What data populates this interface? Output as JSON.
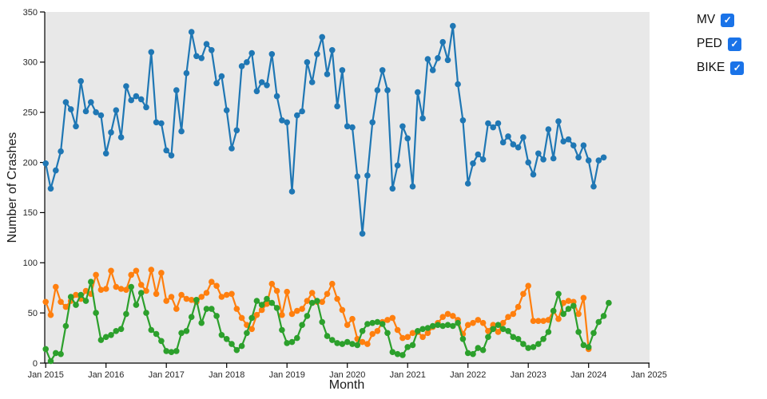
{
  "chart_data": {
    "type": "line",
    "title": "",
    "xlabel": "Month",
    "ylabel": "Number of Crashes",
    "x_start_month": "Jan 2015",
    "x_months_total": 120,
    "x_tick_labels": [
      "Jan 2015",
      "Jan 2016",
      "Jan 2017",
      "Jan 2018",
      "Jan 2019",
      "Jan 2020",
      "Jan 2021",
      "Jan 2022",
      "Jan 2023",
      "Jan 2024",
      "Jan 2025"
    ],
    "x_tick_month_index": [
      0,
      12,
      24,
      36,
      48,
      60,
      72,
      84,
      96,
      108,
      120
    ],
    "y_ticks": [
      0,
      50,
      100,
      150,
      200,
      250,
      300,
      350
    ],
    "ylim": [
      0,
      350
    ],
    "grid": false,
    "plot_background": "#e8e8e8",
    "axis_color": "#000000",
    "tick_label_color": "#262626",
    "legend_position": "outside-top-right",
    "legend_checkbox_color": "#1a73e8",
    "legend_check_glyph": "✓",
    "series": [
      {
        "name": "MV",
        "color": "#1f77b4",
        "checked": true,
        "start_month": "Jan 2015",
        "values": [
          199,
          174,
          192,
          211,
          260,
          253,
          236,
          281,
          251,
          260,
          250,
          247,
          209,
          230,
          252,
          225,
          276,
          262,
          266,
          263,
          255,
          310,
          240,
          239,
          212,
          207,
          272,
          231,
          289,
          330,
          306,
          304,
          318,
          312,
          279,
          286,
          252,
          214,
          232,
          296,
          300,
          309,
          271,
          280,
          277,
          308,
          266,
          242,
          240,
          171,
          247,
          251,
          300,
          280,
          308,
          325,
          288,
          312,
          256,
          292,
          236,
          235,
          186,
          129,
          187,
          240,
          272,
          292,
          272,
          174,
          197,
          236,
          224,
          176,
          270,
          244,
          303,
          292,
          304,
          320,
          302,
          336,
          278,
          242,
          179,
          199,
          208,
          203,
          239,
          235,
          239,
          220,
          226,
          218,
          215,
          225,
          200,
          188,
          209,
          203,
          233,
          204,
          241,
          221,
          223,
          217,
          205,
          217,
          202,
          176,
          202,
          205
        ]
      },
      {
        "name": "PED",
        "color": "#ff7f0e",
        "checked": true,
        "start_month": "Jan 2015",
        "values": [
          61,
          48,
          76,
          61,
          56,
          62,
          68,
          64,
          72,
          69,
          88,
          73,
          74,
          92,
          76,
          74,
          73,
          88,
          92,
          78,
          72,
          93,
          69,
          90,
          62,
          66,
          54,
          68,
          64,
          63,
          61,
          66,
          70,
          81,
          77,
          66,
          68,
          69,
          54,
          45,
          38,
          34,
          48,
          53,
          59,
          79,
          72,
          48,
          71,
          49,
          52,
          54,
          62,
          70,
          61,
          61,
          69,
          79,
          64,
          53,
          38,
          44,
          24,
          21,
          19,
          29,
          32,
          41,
          43,
          45,
          33,
          25,
          26,
          30,
          31,
          26,
          30,
          36,
          40,
          46,
          49,
          47,
          43,
          29,
          38,
          40,
          43,
          40,
          32,
          38,
          31,
          40,
          46,
          49,
          56,
          69,
          77,
          42,
          42,
          42,
          43,
          52,
          44,
          60,
          62,
          61,
          49,
          65,
          14
        ]
      },
      {
        "name": "BIKE",
        "color": "#2ca02c",
        "checked": true,
        "start_month": "Jan 2015",
        "values": [
          14,
          2,
          10,
          9,
          37,
          66,
          58,
          68,
          62,
          81,
          50,
          23,
          26,
          28,
          32,
          34,
          49,
          76,
          58,
          70,
          50,
          33,
          29,
          22,
          12,
          11,
          12,
          30,
          32,
          46,
          63,
          40,
          54,
          54,
          47,
          28,
          24,
          19,
          13,
          17,
          30,
          45,
          62,
          58,
          64,
          60,
          55,
          33,
          20,
          21,
          25,
          38,
          47,
          60,
          62,
          41,
          27,
          23,
          20,
          19,
          21,
          19,
          18,
          32,
          39,
          40,
          41,
          39,
          30,
          11,
          9,
          8,
          16,
          18,
          32,
          34,
          35,
          37,
          38,
          37,
          38,
          37,
          40,
          24,
          10,
          9,
          15,
          13,
          26,
          34,
          38,
          34,
          32,
          26,
          24,
          19,
          15,
          16,
          19,
          24,
          31,
          52,
          69,
          49,
          54,
          57,
          31,
          18,
          16,
          30,
          41,
          47,
          60
        ]
      }
    ]
  }
}
